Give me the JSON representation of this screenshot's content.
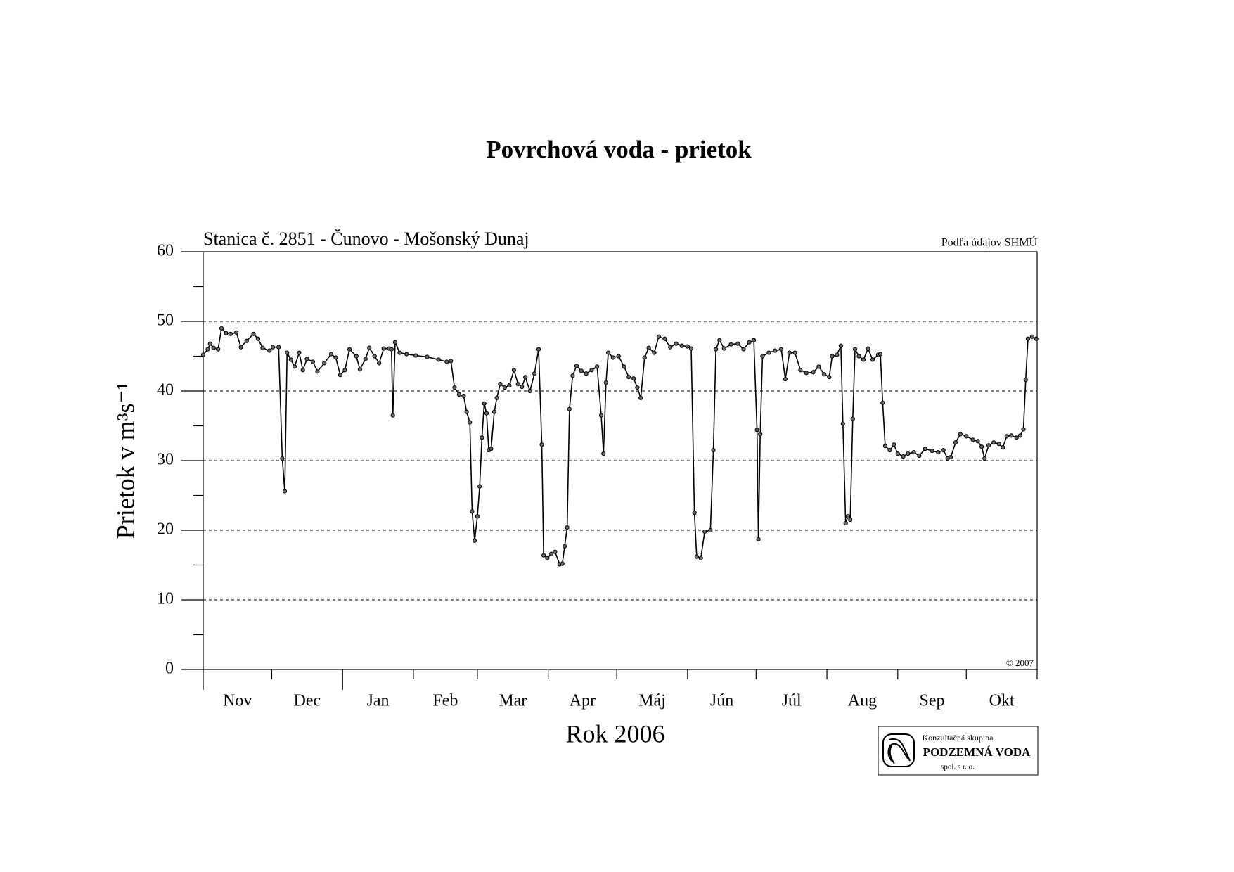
{
  "chart_data": {
    "type": "line",
    "title": "Povrchová voda - prietok",
    "subtitle": "Stanica č. 2851 - Čunovo - Mošonský Dunaj",
    "source": "Podľa údajov SHMÚ",
    "copyright": "© 2007",
    "xlabel": "Rok 2006",
    "ylabel": "Prietok v m³s⁻¹",
    "logo": {
      "line1": "Konzultačná skupina",
      "line2": "PODZEMNÁ VODA",
      "line3": "spol. s r. o."
    },
    "xlim": [
      0,
      365
    ],
    "xticks": [
      {
        "value": 0,
        "label": "Nov"
      },
      {
        "value": 30,
        "label": "Dec"
      },
      {
        "value": 61,
        "label": "Jan"
      },
      {
        "value": 92,
        "label": "Feb"
      },
      {
        "value": 120,
        "label": "Mar"
      },
      {
        "value": 151,
        "label": "Apr"
      },
      {
        "value": 181,
        "label": "Máj"
      },
      {
        "value": 212,
        "label": "Jún"
      },
      {
        "value": 242,
        "label": "Júl"
      },
      {
        "value": 273,
        "label": "Aug"
      },
      {
        "value": 304,
        "label": "Sep"
      },
      {
        "value": 334,
        "label": "Okt"
      },
      {
        "value": 365,
        "label": ""
      }
    ],
    "ylim": [
      0,
      60
    ],
    "yticks": [
      0,
      10,
      20,
      30,
      40,
      50,
      60
    ],
    "minor_yticks": [
      5,
      15,
      25,
      35,
      45,
      55
    ],
    "grid": true,
    "color": "#000000",
    "x": [
      0,
      2,
      3,
      4.5,
      6.5,
      8,
      10,
      12,
      14.5,
      16.5,
      19,
      22,
      24,
      26,
      29,
      30.5,
      33,
      34.6,
      35.7,
      36.7,
      38.4,
      40,
      42,
      43.6,
      45.4,
      48,
      50,
      53,
      56,
      58,
      60,
      62,
      64,
      67,
      68.6,
      71,
      72.7,
      75,
      77,
      79,
      81.4,
      82.4,
      83,
      84,
      86,
      89,
      93,
      98,
      103,
      106.6,
      108.4,
      110,
      112,
      114,
      115.3,
      116.7,
      117.7,
      118.8,
      120,
      121,
      122,
      123,
      124,
      125,
      126,
      127.4,
      128.5,
      130,
      132,
      134,
      136,
      137.8,
      139.5,
      141,
      143,
      145,
      146.8,
      148.2,
      149,
      150.6,
      152.4,
      154,
      156,
      157.2,
      158.2,
      159.3,
      160.3,
      161.7,
      163.4,
      165.5,
      167.6,
      170,
      172.4,
      174.2,
      175.2,
      176.3,
      177.3,
      179.4,
      181.8,
      184.2,
      186.3,
      188.4,
      190,
      191.5,
      193.2,
      195,
      197.4,
      199.4,
      202,
      204.4,
      207,
      209.5,
      212,
      213.6,
      215,
      216,
      217.8,
      219.5,
      222,
      223.3,
      224.4,
      226,
      228,
      231,
      234,
      236.5,
      239,
      241,
      242.4,
      243,
      243.8,
      244.8,
      247.6,
      250.3,
      253,
      254.8,
      256.6,
      259,
      261.4,
      264,
      267,
      269.4,
      271.8,
      274,
      275.3,
      277.4,
      279.1,
      280,
      281.2,
      282.2,
      283.2,
      284.3,
      285.3,
      287,
      289,
      291,
      293,
      295.4,
      296.4,
      297.4,
      298.5,
      300.5,
      302.3,
      304,
      306.4,
      308.5,
      311,
      313.4,
      316,
      319,
      321.7,
      324,
      325.8,
      327.2,
      329.3,
      331.4,
      334,
      336.9,
      339,
      340.7,
      342,
      343.8,
      346,
      348.3,
      350,
      351.7,
      353.7,
      356,
      357.6,
      359,
      360,
      361,
      362.8,
      364.6
    ],
    "values": [
      45.2,
      46,
      46.8,
      46.2,
      46,
      49,
      48.3,
      48.2,
      48.4,
      46.3,
      47.2,
      48.2,
      47.5,
      46.2,
      45.8,
      46.3,
      46.3,
      30.3,
      25.6,
      45.5,
      44.5,
      43.5,
      45.5,
      43,
      44.6,
      44.2,
      42.8,
      44,
      45.3,
      44.8,
      42.3,
      43,
      46,
      45,
      43.1,
      44.6,
      46.2,
      45,
      44,
      46.1,
      46.1,
      46,
      36.5,
      47,
      45.5,
      45.3,
      45.1,
      44.9,
      44.5,
      44.2,
      44.3,
      40.5,
      39.5,
      39.3,
      37,
      35.5,
      22.7,
      18.5,
      22,
      26.3,
      33.3,
      38.2,
      36.8,
      31.5,
      31.7,
      37,
      39,
      41,
      40.5,
      40.8,
      43,
      41,
      40.6,
      42,
      40,
      42.5,
      46,
      32.3,
      16.4,
      16,
      16.6,
      16.9,
      15.1,
      15.2,
      17.7,
      20.4,
      37.4,
      42.2,
      43.6,
      42.9,
      42.5,
      43,
      43.5,
      36.5,
      31,
      41.2,
      45.5,
      44.8,
      45,
      43.5,
      42,
      41.8,
      40.5,
      39,
      44.8,
      46.2,
      45.5,
      47.8,
      47.5,
      46.3,
      46.8,
      46.5,
      46.4,
      46.1,
      22.5,
      16.2,
      16,
      19.8,
      20,
      31.5,
      46,
      47.3,
      46.1,
      46.7,
      46.8,
      46,
      47,
      47.3,
      34.4,
      18.7,
      33.8,
      45,
      45.5,
      45.8,
      46,
      41.7,
      45.5,
      45.5,
      43,
      42.6,
      42.7,
      43.5,
      42.4,
      42,
      45,
      45.2,
      46.5,
      35.3,
      21,
      22,
      21.5,
      36,
      46,
      45,
      44.5,
      46.1,
      44.5,
      45.2,
      45.3,
      38.3,
      32.1,
      31.5,
      32.3,
      31,
      30.6,
      31,
      31.2,
      30.7,
      31.7,
      31.4,
      31.2,
      31.5,
      30.3,
      30.5,
      32.6,
      33.8,
      33.5,
      33,
      32.8,
      32,
      30.3,
      32.2,
      32.6,
      32.4,
      31.9,
      33.5,
      33.6,
      33.3,
      33.6,
      34.5,
      41.6,
      47.5,
      47.8,
      47.5
    ]
  }
}
